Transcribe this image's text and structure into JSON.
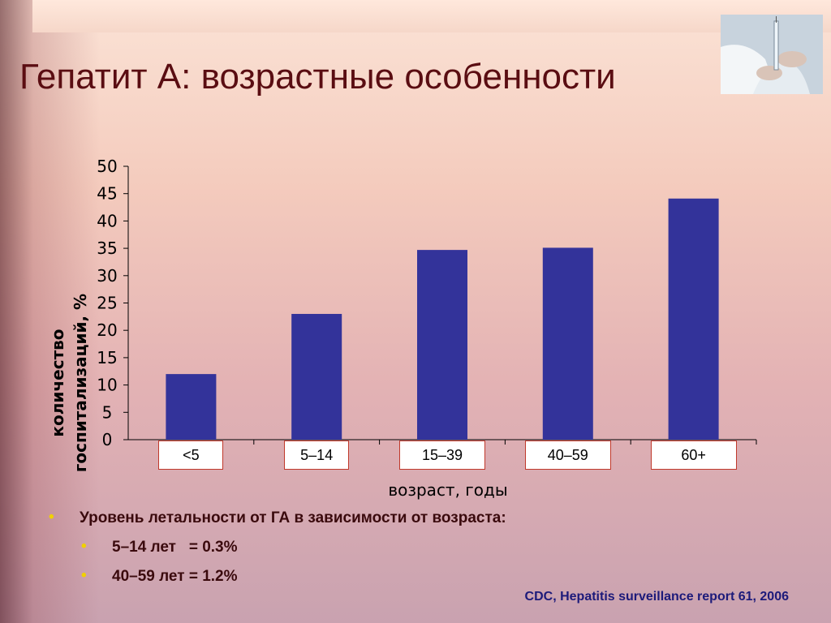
{
  "slide": {
    "title": "Гепатит А: возрастные особенности",
    "photo_icon": "doctor-syringe-photo"
  },
  "chart_data": {
    "type": "bar",
    "categories": [
      "<5",
      "5–14",
      "15–39",
      "40–59",
      "60+"
    ],
    "values": [
      12,
      23,
      34.7,
      35.1,
      44.1
    ],
    "xlabel": "возраст, годы",
    "ylabel_line1": "количество",
    "ylabel_line2": "госпитализаций, %",
    "ylim": [
      0,
      50
    ],
    "yticks": [
      0,
      5,
      10,
      15,
      20,
      25,
      30,
      35,
      40,
      45,
      50
    ],
    "bar_color": "#33339a",
    "category_box_border": "#c0392b",
    "grid": false
  },
  "bullets": {
    "main": "Уровень летальности от ГА в зависимости от возраста:",
    "sub": [
      "5–14 лет   = 0.3%",
      "40–59 лет = 1.2%"
    ],
    "bullet_color": "#f0d000"
  },
  "source": "CDC, Hepatitis surveillance report 61, 2006"
}
